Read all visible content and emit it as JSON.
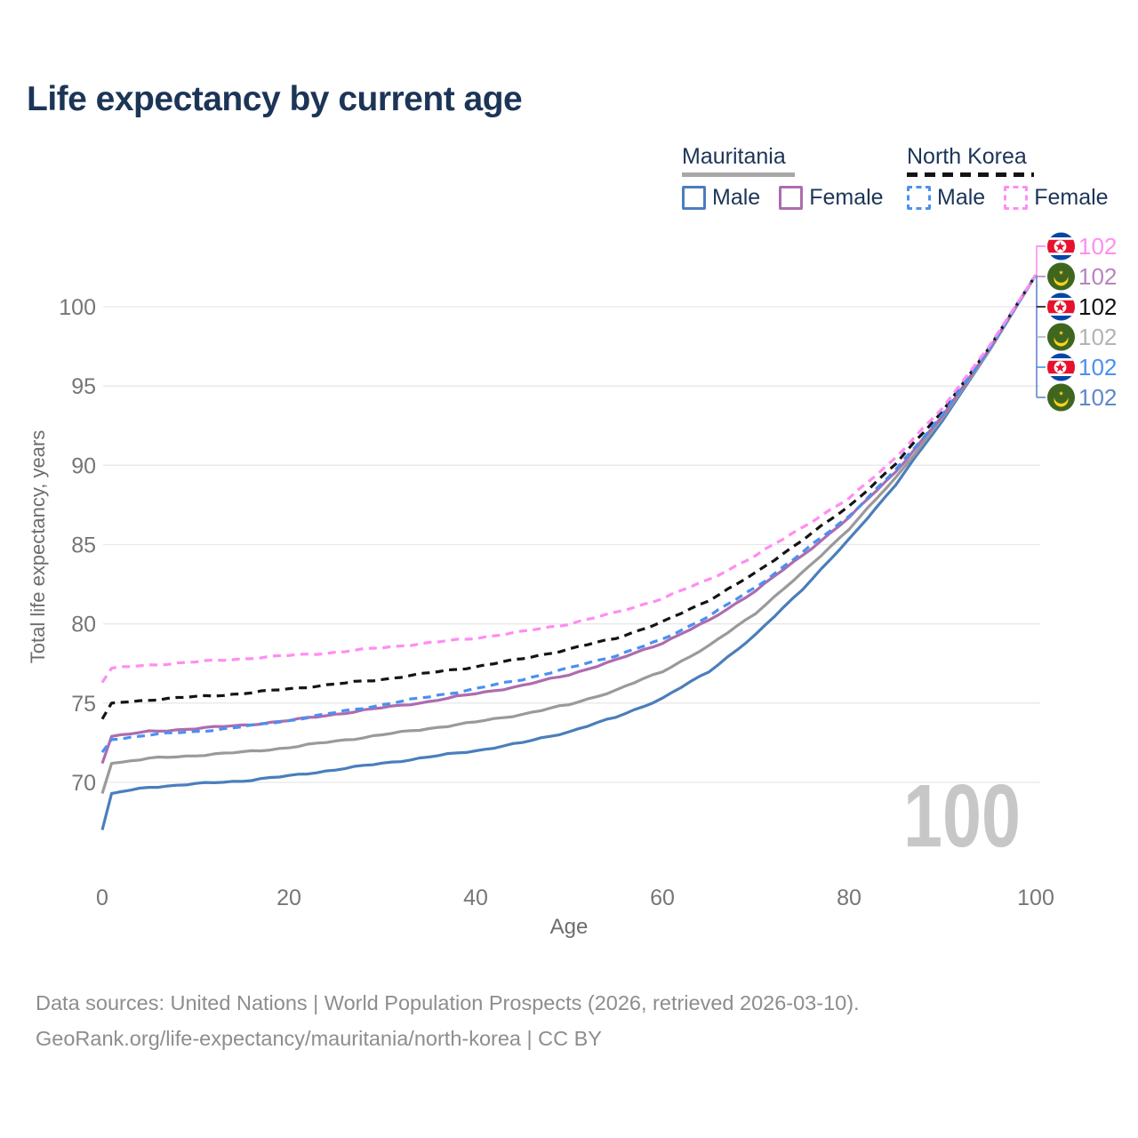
{
  "header": {
    "title": "Life expectancy by current age"
  },
  "legend": {
    "groups": [
      {
        "country": "Mauritania",
        "line_style": "solid",
        "underline_color": "#a8a8a8",
        "items": [
          {
            "label": "Male",
            "color": "#4a7ebc"
          },
          {
            "label": "Female",
            "color": "#ad6caf"
          }
        ]
      },
      {
        "country": "North Korea",
        "line_style": "dashed",
        "underline_color": "#141414",
        "items": [
          {
            "label": "Male",
            "color": "#4a90f0"
          },
          {
            "label": "Female",
            "color": "#ff8df2"
          }
        ]
      }
    ]
  },
  "chart_data": {
    "type": "line",
    "title": "Life expectancy by current age",
    "xlabel": "Age",
    "ylabel": "Total life expectancy, years",
    "xlim": [
      0,
      100
    ],
    "ylim": [
      66.5,
      103
    ],
    "xticks": [
      0,
      20,
      40,
      60,
      80,
      100
    ],
    "yticks": [
      70,
      75,
      80,
      85,
      90,
      95,
      100
    ],
    "grid": "horizontal-only",
    "grid_color": "#e8e8e8",
    "tick_color": "#767676",
    "axis_title_color": "#6d6d6d",
    "age_counter": "100",
    "age_counter_color": "#c7c7c7",
    "series": [
      {
        "name": "Mauritania Male",
        "country": "Mauritania",
        "sex": "Male",
        "color": "#4a7ebc",
        "dashed": false,
        "points": [
          [
            0,
            67.0
          ],
          [
            1,
            69.3
          ],
          [
            5,
            69.7
          ],
          [
            10,
            69.9
          ],
          [
            15,
            70.1
          ],
          [
            20,
            70.4
          ],
          [
            25,
            70.8
          ],
          [
            30,
            71.2
          ],
          [
            35,
            71.6
          ],
          [
            40,
            72.0
          ],
          [
            45,
            72.5
          ],
          [
            50,
            73.2
          ],
          [
            55,
            74.1
          ],
          [
            60,
            75.3
          ],
          [
            65,
            77.0
          ],
          [
            70,
            79.3
          ],
          [
            75,
            82.2
          ],
          [
            80,
            85.3
          ],
          [
            85,
            88.8
          ],
          [
            90,
            92.8
          ],
          [
            95,
            97.2
          ],
          [
            100,
            102
          ]
        ]
      },
      {
        "name": "Mauritania Female",
        "country": "Mauritania",
        "sex": "Female",
        "color": "#ad6caf",
        "dashed": false,
        "points": [
          [
            0,
            71.2
          ],
          [
            1,
            72.9
          ],
          [
            5,
            73.2
          ],
          [
            10,
            73.4
          ],
          [
            15,
            73.6
          ],
          [
            20,
            73.9
          ],
          [
            25,
            74.3
          ],
          [
            30,
            74.7
          ],
          [
            35,
            75.1
          ],
          [
            40,
            75.6
          ],
          [
            45,
            76.1
          ],
          [
            50,
            76.8
          ],
          [
            55,
            77.7
          ],
          [
            60,
            78.8
          ],
          [
            65,
            80.2
          ],
          [
            70,
            82.1
          ],
          [
            75,
            84.3
          ],
          [
            80,
            86.7
          ],
          [
            85,
            89.6
          ],
          [
            90,
            93.1
          ],
          [
            95,
            97.3
          ],
          [
            100,
            102
          ]
        ]
      },
      {
        "name": "Mauritania Both sexes",
        "country": "Mauritania",
        "sex": "Both",
        "color": "#9a9a9a",
        "dashed": false,
        "points": [
          [
            0,
            69.3
          ],
          [
            1,
            71.2
          ],
          [
            5,
            71.5
          ],
          [
            10,
            71.7
          ],
          [
            15,
            71.9
          ],
          [
            20,
            72.2
          ],
          [
            25,
            72.6
          ],
          [
            30,
            73.0
          ],
          [
            35,
            73.4
          ],
          [
            40,
            73.8
          ],
          [
            45,
            74.3
          ],
          [
            50,
            74.9
          ],
          [
            55,
            75.8
          ],
          [
            60,
            77.0
          ],
          [
            65,
            78.6
          ],
          [
            70,
            80.7
          ],
          [
            75,
            83.2
          ],
          [
            80,
            86.0
          ],
          [
            85,
            89.2
          ],
          [
            90,
            93.0
          ],
          [
            95,
            97.2
          ],
          [
            100,
            102
          ]
        ]
      },
      {
        "name": "North Korea Male",
        "country": "North Korea",
        "sex": "Male",
        "color": "#4a90f0",
        "dashed": true,
        "points": [
          [
            0,
            71.9
          ],
          [
            1,
            72.7
          ],
          [
            5,
            73.0
          ],
          [
            10,
            73.2
          ],
          [
            15,
            73.5
          ],
          [
            20,
            73.9
          ],
          [
            25,
            74.4
          ],
          [
            30,
            74.9
          ],
          [
            35,
            75.4
          ],
          [
            40,
            75.9
          ],
          [
            45,
            76.5
          ],
          [
            50,
            77.2
          ],
          [
            55,
            78.0
          ],
          [
            60,
            79.0
          ],
          [
            65,
            80.5
          ],
          [
            70,
            82.3
          ],
          [
            75,
            84.5
          ],
          [
            80,
            86.8
          ],
          [
            85,
            89.7
          ],
          [
            90,
            93.2
          ],
          [
            95,
            97.3
          ],
          [
            100,
            102
          ]
        ]
      },
      {
        "name": "North Korea Both sexes",
        "country": "North Korea",
        "sex": "Both",
        "color": "#141414",
        "dashed": true,
        "points": [
          [
            0,
            74.0
          ],
          [
            1,
            75.0
          ],
          [
            5,
            75.2
          ],
          [
            10,
            75.4
          ],
          [
            15,
            75.6
          ],
          [
            20,
            75.9
          ],
          [
            25,
            76.2
          ],
          [
            30,
            76.5
          ],
          [
            35,
            76.9
          ],
          [
            40,
            77.3
          ],
          [
            45,
            77.8
          ],
          [
            50,
            78.4
          ],
          [
            55,
            79.1
          ],
          [
            60,
            80.1
          ],
          [
            65,
            81.5
          ],
          [
            70,
            83.2
          ],
          [
            75,
            85.3
          ],
          [
            80,
            87.4
          ],
          [
            85,
            90.1
          ],
          [
            90,
            93.4
          ],
          [
            95,
            97.4
          ],
          [
            100,
            102
          ]
        ]
      },
      {
        "name": "North Korea Female",
        "country": "North Korea",
        "sex": "Female",
        "color": "#ff8df2",
        "dashed": true,
        "points": [
          [
            0,
            76.3
          ],
          [
            1,
            77.2
          ],
          [
            5,
            77.4
          ],
          [
            10,
            77.6
          ],
          [
            15,
            77.8
          ],
          [
            20,
            78.0
          ],
          [
            25,
            78.2
          ],
          [
            30,
            78.5
          ],
          [
            35,
            78.8
          ],
          [
            40,
            79.1
          ],
          [
            45,
            79.5
          ],
          [
            50,
            80.0
          ],
          [
            55,
            80.7
          ],
          [
            60,
            81.6
          ],
          [
            65,
            82.8
          ],
          [
            70,
            84.3
          ],
          [
            75,
            86.1
          ],
          [
            80,
            87.9
          ],
          [
            85,
            90.5
          ],
          [
            90,
            93.6
          ],
          [
            95,
            97.5
          ],
          [
            100,
            102
          ]
        ]
      }
    ],
    "end_labels": [
      {
        "series": "North Korea Female",
        "flag": "north-korea-flag-icon",
        "value": "102",
        "color": "#ff8df2"
      },
      {
        "series": "Mauritania Female",
        "flag": "mauritania-flag-icon",
        "value": "102",
        "color": "#b685bc"
      },
      {
        "series": "North Korea Both sexes",
        "flag": "north-korea-flag-icon",
        "value": "102",
        "color": "#111111"
      },
      {
        "series": "Mauritania Both sexes",
        "flag": "mauritania-flag-icon",
        "value": "102",
        "color": "#b3b3b3"
      },
      {
        "series": "North Korea Male",
        "flag": "north-korea-flag-icon",
        "value": "102",
        "color": "#4a90f0"
      },
      {
        "series": "Mauritania Male",
        "flag": "mauritania-flag-icon",
        "value": "102",
        "color": "#5e87c8"
      }
    ]
  },
  "footer": {
    "line1": "Data sources: United Nations | World Population Prospects (2026, retrieved 2026-03-10).",
    "line2": "GeoRank.org/life-expectancy/mauritania/north-korea | CC BY"
  }
}
